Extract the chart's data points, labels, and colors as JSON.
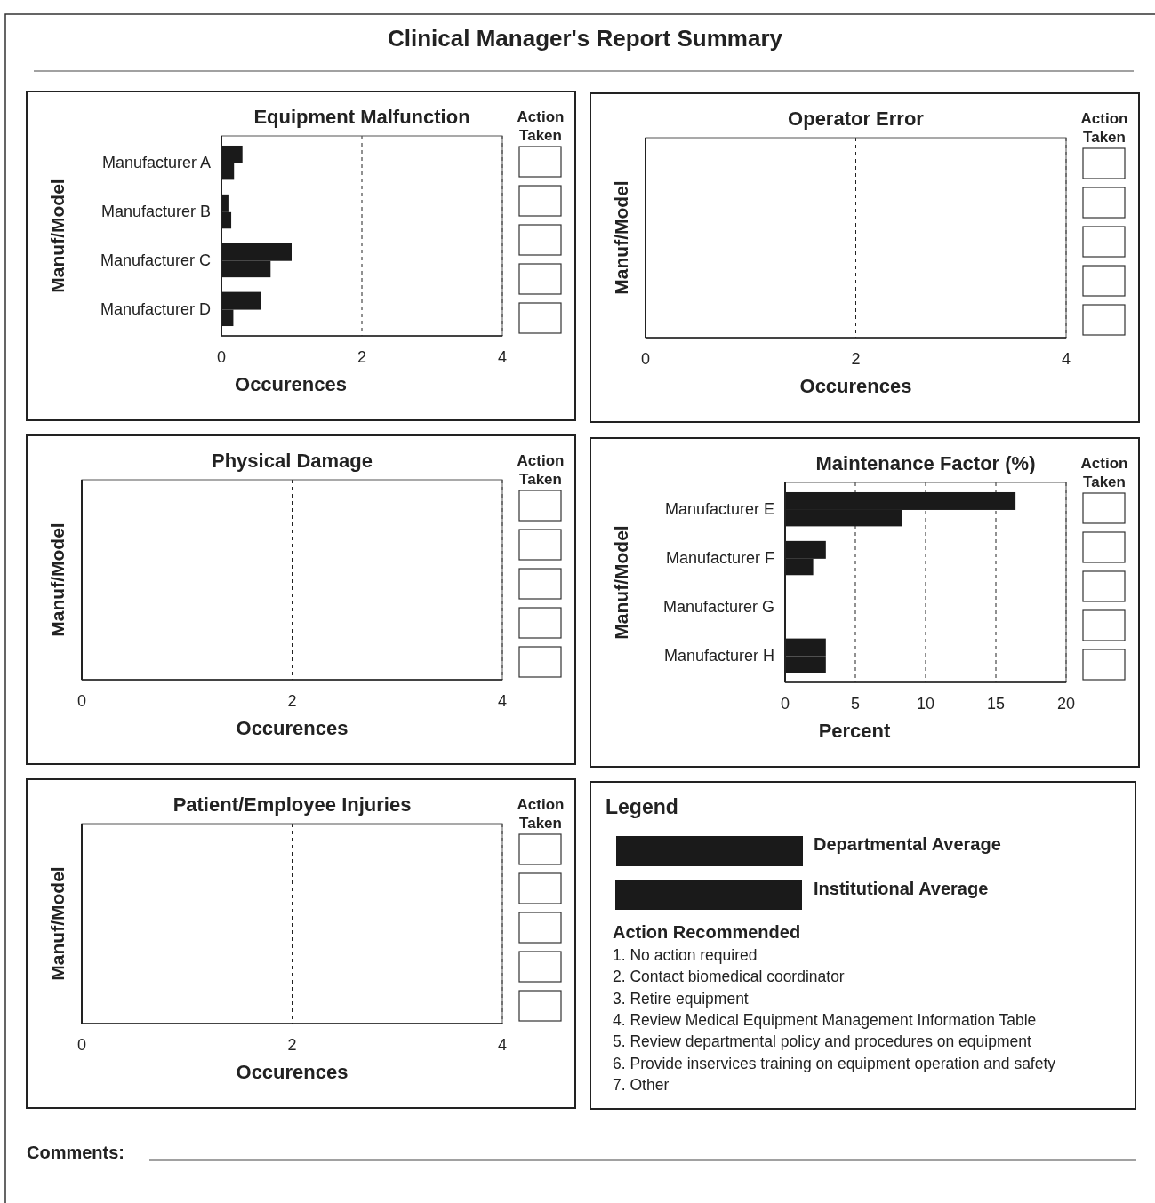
{
  "chart_data": [
    {
      "type": "other",
      "title": "Clinical Manager's Report Summary"
    },
    {
      "type": "bar",
      "orientation": "horizontal",
      "title": "Equipment Malfunction",
      "xlabel": "Occurences",
      "ylabel": "Manuf/Model",
      "categories": [
        "Manufacturer A",
        "Manufacturer B",
        "Manufacturer C",
        "Manufacturer D"
      ],
      "series": [
        {
          "color": "#1a1a1a",
          "values": [
            0.3,
            0.1,
            1.0,
            0.56
          ]
        },
        {
          "color": "#1a1a1a",
          "values": [
            0.18,
            0.14,
            0.7,
            0.17
          ]
        }
      ],
      "xlim": [
        0,
        4
      ],
      "xticks": [
        0,
        2,
        4
      ],
      "grid": "x",
      "annotations": [
        "Action Taken"
      ]
    },
    {
      "type": "bar",
      "orientation": "horizontal",
      "title": "Operator Error",
      "xlabel": "Occurences",
      "ylabel": "Manuf/Model",
      "categories": [
        null,
        null,
        null,
        null
      ],
      "values": [
        null,
        null,
        null,
        null
      ],
      "xlim": [
        0,
        4
      ],
      "xticks": [
        0,
        2,
        4
      ],
      "grid": "x",
      "annotations": [
        "Action Taken"
      ]
    },
    {
      "type": "bar",
      "orientation": "horizontal",
      "title": "Physical Damage",
      "xlabel": "Occurences",
      "ylabel": "Manuf/Model",
      "categories": [
        null,
        null,
        null,
        null
      ],
      "values": [
        null,
        null,
        null,
        null
      ],
      "xlim": [
        0,
        4
      ],
      "xticks": [
        0,
        2,
        4
      ],
      "grid": "x",
      "annotations": [
        "Action Taken"
      ]
    },
    {
      "type": "bar",
      "orientation": "horizontal",
      "title": "Maintenance Factor (%)",
      "xlabel": "Percent",
      "ylabel": "Manuf/Model",
      "categories": [
        "Manufacturer E",
        "Manufacturer F",
        "Manufacturer G",
        "Manufacturer H"
      ],
      "series": [
        {
          "color": "#1a1a1a",
          "values": [
            16.4,
            2.9,
            null,
            2.9
          ]
        },
        {
          "color": "#1a1a1a",
          "values": [
            8.3,
            2.0,
            null,
            2.9
          ]
        }
      ],
      "xlim": [
        0,
        20
      ],
      "xticks": [
        0,
        5,
        10,
        15,
        20
      ],
      "grid": "x",
      "annotations": [
        "Action Taken"
      ]
    },
    {
      "type": "bar",
      "orientation": "horizontal",
      "title": "Patient/Employee Injuries",
      "xlabel": "Occurences",
      "ylabel": "Manuf/Model",
      "categories": [
        null,
        null,
        null,
        null
      ],
      "values": [
        null,
        null,
        null,
        null
      ],
      "xlim": [
        0,
        4
      ],
      "xticks": [
        0,
        2,
        4
      ],
      "grid": "x",
      "annotations": [
        "Action Taken"
      ]
    },
    {
      "type": "other",
      "title": "Legend",
      "annotations": [
        "Departmental Average",
        "Institutional Average",
        "Action Recommended",
        "1. No action required",
        "2. Contact biomedical coordinator",
        "3. Retire equipment",
        "4. Review Medical Equipment Management Information Table",
        "5. Review departmental policy and procedures on equipment",
        "6. Provide inservices training on equipment operation and safety",
        "7. Other"
      ]
    },
    {
      "type": "other",
      "annotations": [
        "Comments:"
      ]
    }
  ]
}
